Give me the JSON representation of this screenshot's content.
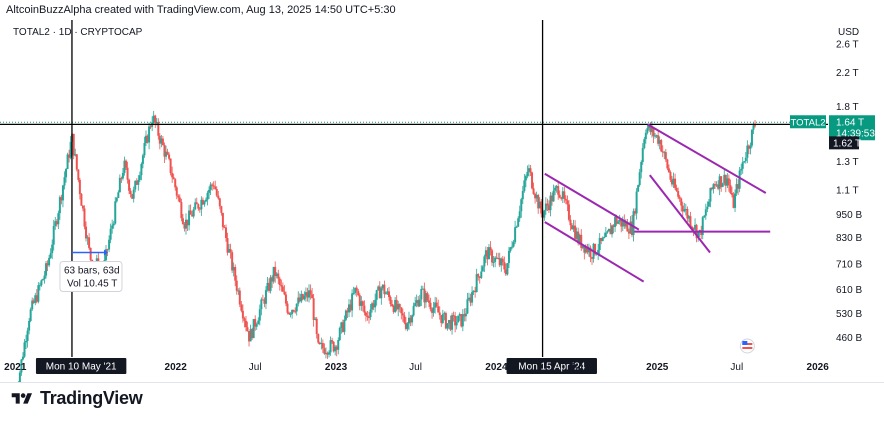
{
  "header": {
    "caption": "AltcoinBuzzAlpha created with TradingView.com, Aug 13, 2025 14:50 UTC+5:30",
    "symbol_line": "TOTAL2 · 1D · CRYPTOCAP"
  },
  "footer": {
    "brand": "TradingView"
  },
  "colors": {
    "up": "#26a69a",
    "down": "#ef5350",
    "trend": "#9c27b0",
    "crosshair": "#000000",
    "price_tag": "#089981",
    "label_bg": "#131722"
  },
  "chart_data": {
    "type": "candlestick",
    "currency": "USD",
    "y_scale": "log",
    "y_ticks": [
      "2.6 T",
      "2.2 T",
      "1.8 T",
      "1.3 T",
      "1.1 T",
      "950 B",
      "830 B",
      "710 B",
      "610 B",
      "530 B",
      "460 B"
    ],
    "y_tick_values": [
      2600,
      2200,
      1800,
      1300,
      1100,
      950,
      830,
      710,
      610,
      530,
      460
    ],
    "x_ticks": [
      "2021",
      "2022",
      "Jul",
      "2023",
      "Jul",
      "2024",
      "Jul",
      "2025",
      "Jul",
      "2026"
    ],
    "x_tick_dates": [
      "2021-01-01",
      "2022-01-01",
      "2022-07-01",
      "2023-01-01",
      "2023-07-01",
      "2024-01-01",
      "2024-07-01",
      "2025-01-01",
      "2025-07-01",
      "2026-01-01"
    ],
    "price_path": [
      {
        "date": "2021-01-01",
        "value": 320
      },
      {
        "date": "2021-02-01",
        "value": 520
      },
      {
        "date": "2021-03-15",
        "value": 700
      },
      {
        "date": "2021-05-10",
        "value": 1500
      },
      {
        "date": "2021-06-20",
        "value": 740
      },
      {
        "date": "2021-07-20",
        "value": 680
      },
      {
        "date": "2021-09-05",
        "value": 1280
      },
      {
        "date": "2021-09-25",
        "value": 1050
      },
      {
        "date": "2021-11-09",
        "value": 1700
      },
      {
        "date": "2021-12-20",
        "value": 1250
      },
      {
        "date": "2022-01-22",
        "value": 900
      },
      {
        "date": "2022-03-29",
        "value": 1150
      },
      {
        "date": "2022-05-12",
        "value": 680
      },
      {
        "date": "2022-06-18",
        "value": 460
      },
      {
        "date": "2022-08-14",
        "value": 680
      },
      {
        "date": "2022-09-15",
        "value": 540
      },
      {
        "date": "2022-11-05",
        "value": 600
      },
      {
        "date": "2022-11-21",
        "value": 430
      },
      {
        "date": "2022-12-31",
        "value": 440
      },
      {
        "date": "2023-02-15",
        "value": 610
      },
      {
        "date": "2023-03-10",
        "value": 520
      },
      {
        "date": "2023-04-15",
        "value": 620
      },
      {
        "date": "2023-06-10",
        "value": 500
      },
      {
        "date": "2023-07-14",
        "value": 600
      },
      {
        "date": "2023-09-11",
        "value": 500
      },
      {
        "date": "2023-10-15",
        "value": 510
      },
      {
        "date": "2023-12-10",
        "value": 760
      },
      {
        "date": "2024-01-23",
        "value": 690
      },
      {
        "date": "2024-03-13",
        "value": 1250
      },
      {
        "date": "2024-04-13",
        "value": 950
      },
      {
        "date": "2024-05-21",
        "value": 1120
      },
      {
        "date": "2024-07-05",
        "value": 820
      },
      {
        "date": "2024-08-05",
        "value": 760
      },
      {
        "date": "2024-09-06",
        "value": 820
      },
      {
        "date": "2024-09-27",
        "value": 920
      },
      {
        "date": "2024-11-05",
        "value": 880
      },
      {
        "date": "2024-12-05",
        "value": 1600
      },
      {
        "date": "2025-01-06",
        "value": 1480
      },
      {
        "date": "2025-02-03",
        "value": 1150
      },
      {
        "date": "2025-03-10",
        "value": 950
      },
      {
        "date": "2025-04-07",
        "value": 840
      },
      {
        "date": "2025-05-10",
        "value": 1150
      },
      {
        "date": "2025-06-10",
        "value": 1180
      },
      {
        "date": "2025-06-22",
        "value": 1000
      },
      {
        "date": "2025-07-15",
        "value": 1300
      },
      {
        "date": "2025-08-13",
        "value": 1640
      }
    ],
    "horizontal_line": {
      "value": 1620,
      "label": "1.62 T"
    },
    "last_price": {
      "symbol": "TOTAL2",
      "value": "1.64 T",
      "countdown": "14:39:53"
    },
    "crosshairs": [
      {
        "date": "2021-05-10",
        "label": "Mon 10 May '21"
      },
      {
        "date": "2024-04-15",
        "label": "Mon 15 Apr '24"
      }
    ],
    "measure": {
      "bars": "63 bars, 63d",
      "volume": "Vol 10.45 T"
    },
    "trendlines": [
      {
        "from": {
          "date": "2024-04-20",
          "value": 1210
        },
        "to": {
          "date": "2024-11-20",
          "value": 870
        }
      },
      {
        "from": {
          "date": "2024-04-20",
          "value": 910
        },
        "to": {
          "date": "2024-12-01",
          "value": 640
        }
      },
      {
        "from": {
          "date": "2024-11-10",
          "value": 860
        },
        "to": {
          "date": "2025-09-15",
          "value": 860
        }
      },
      {
        "from": {
          "date": "2024-12-10",
          "value": 1620
        },
        "to": {
          "date": "2025-09-05",
          "value": 1080
        }
      },
      {
        "from": {
          "date": "2024-12-15",
          "value": 1200
        },
        "to": {
          "date": "2025-05-01",
          "value": 760
        }
      }
    ]
  }
}
